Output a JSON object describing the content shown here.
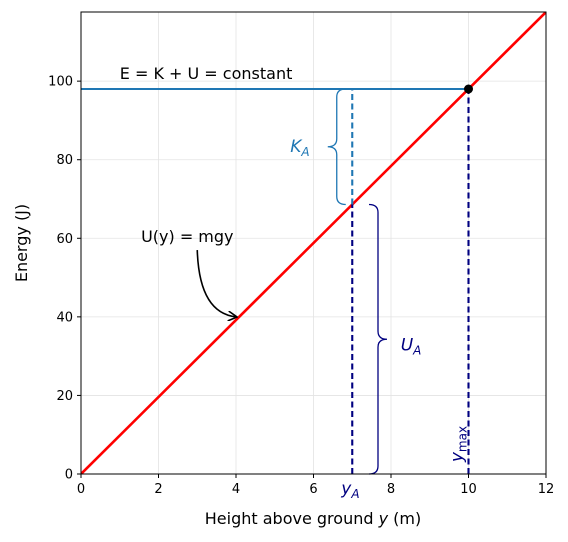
{
  "chart_data": {
    "type": "line",
    "title": "",
    "xlabel": {
      "prefix": "Height above ground ",
      "var": "y",
      "suffix": " (m)"
    },
    "ylabel": "Energy (J)",
    "xlim": [
      0,
      12
    ],
    "ylim": [
      0,
      117.6
    ],
    "xticks": [
      0,
      2,
      4,
      6,
      8,
      10,
      12
    ],
    "yticks": [
      0,
      20,
      40,
      60,
      80,
      100
    ],
    "grid": true,
    "legend": "none",
    "series": [
      {
        "role": "potential-energy",
        "color": "#ff0000",
        "x": [
          0,
          12
        ],
        "y": [
          0,
          117.6
        ]
      },
      {
        "role": "total-energy",
        "color": "#1f77b4",
        "x": [
          0,
          10
        ],
        "y": [
          98,
          98
        ]
      }
    ],
    "points": [
      {
        "role": "max-height-point",
        "x": 10,
        "y": 98,
        "color": "#000000"
      }
    ],
    "reference_lines": [
      {
        "role": "yA-line",
        "x": 7,
        "y_from": 0,
        "y_to": 68.6,
        "color": "#000080"
      },
      {
        "role": "yA-k-segment",
        "x": 7,
        "y_from": 68.6,
        "y_to": 98,
        "color": "#1f77b4"
      },
      {
        "role": "ymax-line",
        "x": 10,
        "y_from": 0,
        "y_to": 98,
        "color": "#000080"
      }
    ],
    "braces": [
      {
        "role": "kinetic-brace",
        "x": 6.6,
        "y_from": 68.6,
        "y_to": 98,
        "side": "left",
        "color": "#1f77b4"
      },
      {
        "role": "potential-brace",
        "x": 7.2,
        "y_from": 0,
        "y_to": 68.6,
        "side": "right",
        "color": "#000080"
      }
    ],
    "annotations": {
      "energy_eq": {
        "text": "E = K + U = constant",
        "x": 1.0,
        "y": 100.5
      },
      "potential_eq": {
        "text": "U(y) = mgy",
        "x": 1.55,
        "y": 59
      },
      "arrow": {
        "from": [
          3.0,
          57
        ],
        "to": [
          4.0,
          40
        ]
      },
      "k_label": {
        "main": "K",
        "sub": "A",
        "x": 5.4,
        "y": 82,
        "color": "#1f77b4"
      },
      "u_label": {
        "main": "U",
        "sub": "A",
        "x": 8.25,
        "y": 31.5,
        "color": "#000080"
      },
      "ya_label": {
        "main": "y",
        "sub": "A",
        "x": 7.0,
        "color": "#000080"
      },
      "ymax_label": {
        "main": "y",
        "sub": "max",
        "x": 9.85,
        "y": 2,
        "color": "#000080"
      }
    }
  }
}
